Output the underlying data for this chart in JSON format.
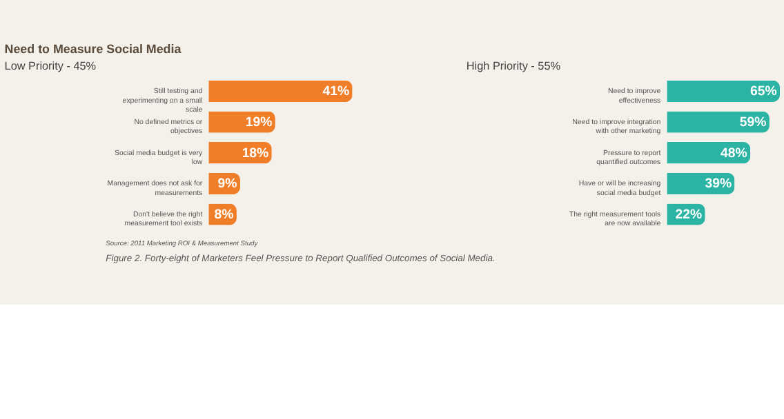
{
  "chart_data": [
    {
      "type": "bar",
      "orientation": "horizontal",
      "title": "Need to Measure Social Media",
      "subtitle": "Low Priority - 45%",
      "categories": [
        "Still testing and experimenting on a small scale",
        "No defined metrics or objectives",
        "Social media budget is very low",
        "Management does not ask for measurements",
        "Don't believe the right measurement tool exists"
      ],
      "values": [
        41,
        19,
        18,
        9,
        8
      ],
      "value_labels": [
        "41%",
        "19%",
        "18%",
        "9%",
        "8%"
      ],
      "color": "#f07d28",
      "annotations": [
        "Source: 2011 Marketing ROI & Measurement Study",
        "Figure 2. Forty-eight of Marketers Feel Pressure to Report Qualified Outcomes of Social Media."
      ]
    },
    {
      "type": "bar",
      "orientation": "horizontal",
      "subtitle": "High Priority - 55%",
      "categories": [
        "Need to improve effectiveness",
        "Need to improve integration with other marketing",
        "Pressure to report quantified outcomes",
        "Have or will be increasing social media budget",
        "The right measurement tools are now available"
      ],
      "values": [
        65,
        59,
        48,
        39,
        22
      ],
      "value_labels": [
        "65%",
        "59%",
        "48%",
        "39%",
        "22%"
      ],
      "color": "#2bb3a3"
    }
  ]
}
